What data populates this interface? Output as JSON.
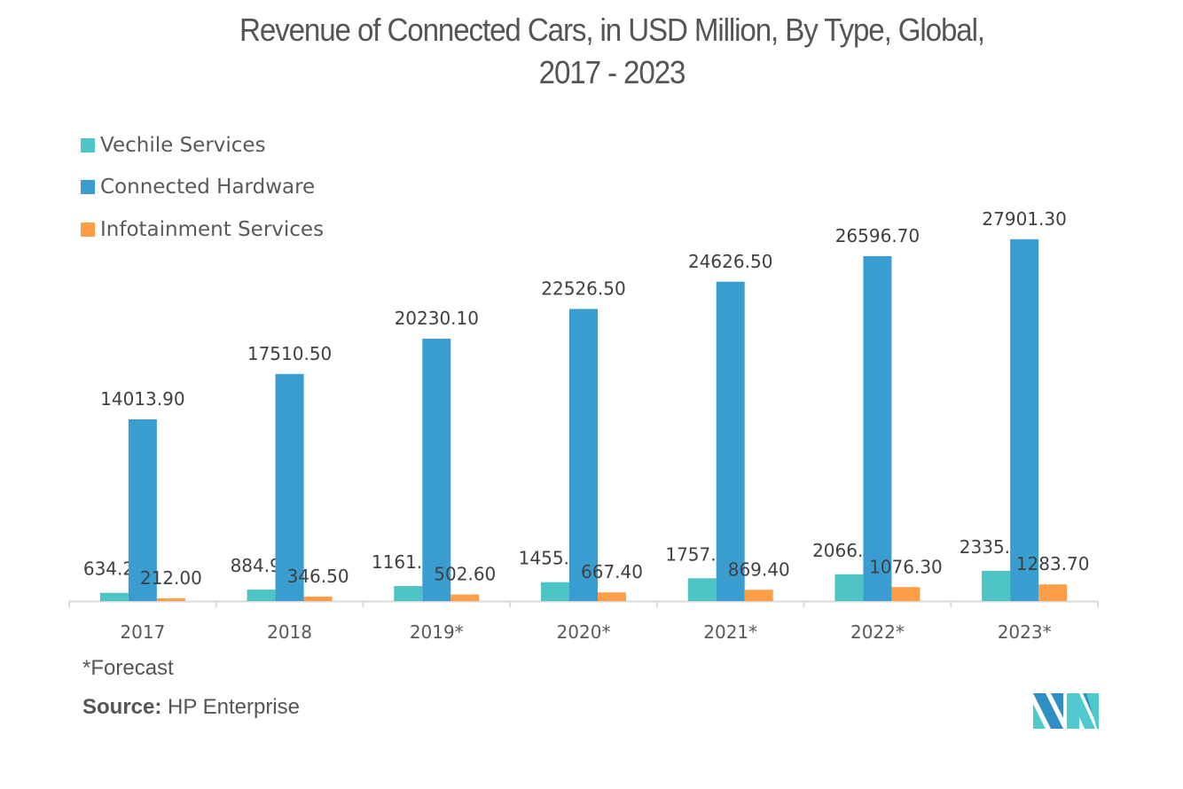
{
  "chart_data": {
    "type": "bar",
    "title": "Revenue of Connected Cars, in USD Million, By Type, Global,",
    "subtitle": "2017 - 2023",
    "categories": [
      "2017",
      "2018",
      "2019*",
      "2020*",
      "2021*",
      "2022*",
      "2023*"
    ],
    "series": [
      {
        "name": "Vechile Services",
        "color": "#4fc4c6",
        "values": [
          634.2,
          884.9,
          1161.4,
          1455.0,
          1757.6,
          2066.0,
          2335.1
        ]
      },
      {
        "name": "Connected Hardware",
        "color": "#3a9dd0",
        "values": [
          14013.9,
          17510.5,
          20230.1,
          22526.5,
          24626.5,
          26596.7,
          27901.3
        ]
      },
      {
        "name": "Infotainment Services",
        "color": "#fd9d45",
        "values": [
          212.0,
          346.5,
          502.6,
          667.4,
          869.4,
          1076.3,
          1283.7
        ]
      }
    ],
    "data_labels": true,
    "xlabel": "",
    "ylabel": "",
    "ylim": [
      0,
      30000
    ],
    "grid": false,
    "legend": "top-left"
  },
  "footnote": "*Forecast",
  "source": {
    "label": "Source:",
    "value": "HP Enterprise"
  },
  "logo": "mordor-intelligence-logo"
}
